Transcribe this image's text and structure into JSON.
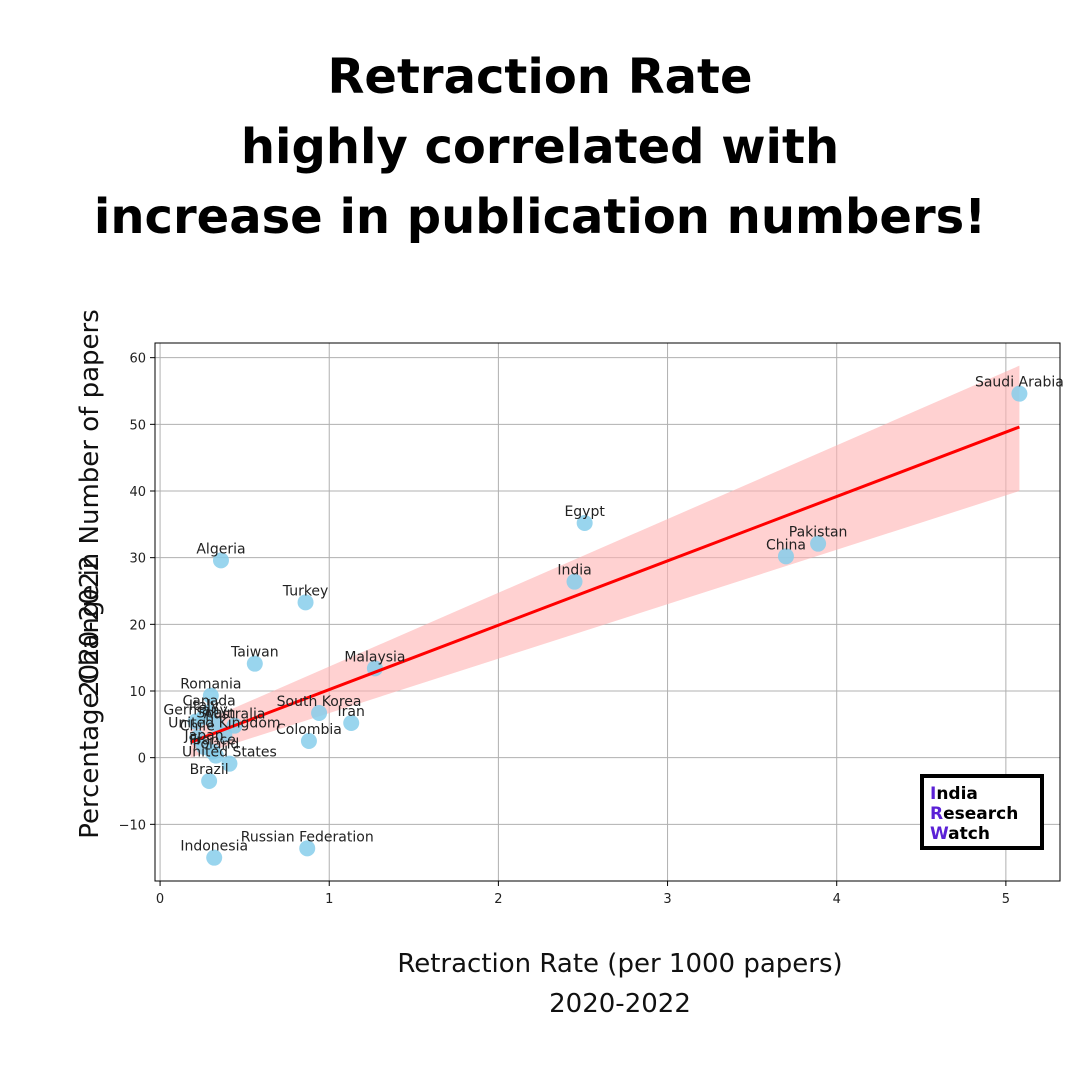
{
  "header": {
    "title_lines": [
      "Retraction Rate",
      "highly correlated with",
      "increase in publication numbers!"
    ]
  },
  "logo": {
    "lines": [
      {
        "initial": "I",
        "rest": "ndia"
      },
      {
        "initial": "R",
        "rest": "esearch"
      },
      {
        "initial": "W",
        "rest": "atch"
      }
    ],
    "accent_color": "#5b21d6"
  },
  "chart_data": {
    "type": "scatter",
    "ylabel_lines": [
      "Percentage Change in Number of papers",
      "2020-2022"
    ],
    "xlabel_lines": [
      "Retraction Rate (per 1000 papers)",
      "2020-2022"
    ],
    "xlim": [
      -0.03,
      5.32
    ],
    "ylim": [
      -18.5,
      62.2
    ],
    "x_ticks": [
      0,
      1,
      2,
      3,
      4,
      5
    ],
    "y_ticks": [
      -10,
      0,
      10,
      20,
      30,
      40,
      50,
      60
    ],
    "grid": true,
    "point_color": "#87ceeb",
    "regression": {
      "color": "#ff0000",
      "band_color": "#ffb3b3",
      "start": [
        0.18,
        2.3
      ],
      "end": [
        5.08,
        49.6
      ],
      "band_start": [
        0.0,
        4.6
      ],
      "band_end": [
        40.0,
        58.8
      ]
    },
    "points": [
      {
        "label": "Saudi Arabia",
        "x": 5.08,
        "y": 54.6
      },
      {
        "label": "Egypt",
        "x": 2.51,
        "y": 35.2
      },
      {
        "label": "Pakistan",
        "x": 3.89,
        "y": 32.1
      },
      {
        "label": "China",
        "x": 3.7,
        "y": 30.2
      },
      {
        "label": "India",
        "x": 2.45,
        "y": 26.4
      },
      {
        "label": "Algeria",
        "x": 0.36,
        "y": 29.6
      },
      {
        "label": "Turkey",
        "x": 0.86,
        "y": 23.3
      },
      {
        "label": "Taiwan",
        "x": 0.56,
        "y": 14.1
      },
      {
        "label": "Malaysia",
        "x": 1.27,
        "y": 13.4
      },
      {
        "label": "Romania",
        "x": 0.3,
        "y": 9.3
      },
      {
        "label": "South Korea",
        "x": 0.94,
        "y": 6.7
      },
      {
        "label": "Iran",
        "x": 1.13,
        "y": 5.2
      },
      {
        "label": "Canada",
        "x": 0.29,
        "y": 6.8
      },
      {
        "label": "Italy",
        "x": 0.26,
        "y": 6.1
      },
      {
        "label": "Germany",
        "x": 0.21,
        "y": 5.4
      },
      {
        "label": "Australia",
        "x": 0.44,
        "y": 4.8
      },
      {
        "label": "Spain",
        "x": 0.33,
        "y": 5.0
      },
      {
        "label": "United Kingdom",
        "x": 0.38,
        "y": 3.5
      },
      {
        "label": "Colombia",
        "x": 0.88,
        "y": 2.5
      },
      {
        "label": "Chile",
        "x": 0.22,
        "y": 3.0
      },
      {
        "label": "Japan",
        "x": 0.26,
        "y": 1.6
      },
      {
        "label": "France",
        "x": 0.31,
        "y": 0.9
      },
      {
        "label": "Poland",
        "x": 0.33,
        "y": 0.3
      },
      {
        "label": "United States",
        "x": 0.41,
        "y": -0.9
      },
      {
        "label": "Brazil",
        "x": 0.29,
        "y": -3.5
      },
      {
        "label": "Russian Federation",
        "x": 0.87,
        "y": -13.6
      },
      {
        "label": "Indonesia",
        "x": 0.32,
        "y": -15.0
      }
    ]
  }
}
